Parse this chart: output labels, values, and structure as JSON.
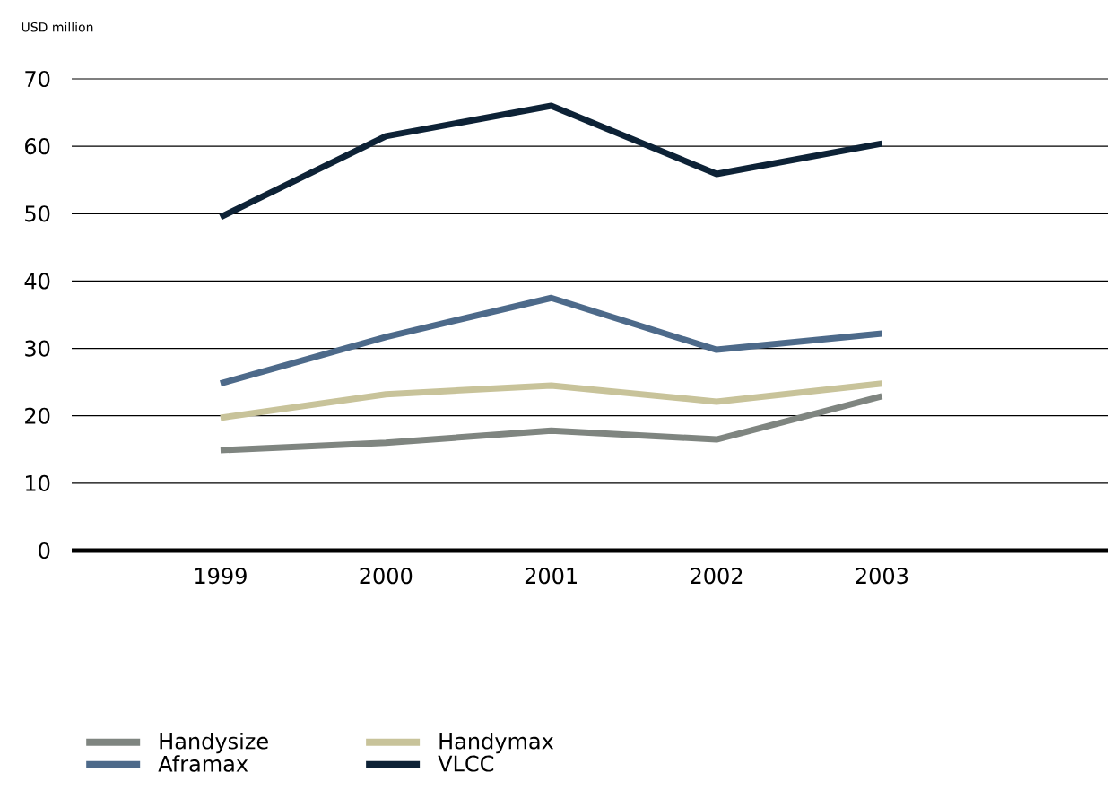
{
  "chart_data": {
    "type": "line",
    "ylabel": "USD million",
    "categories": [
      "1999",
      "2000",
      "2001",
      "2002",
      "2003"
    ],
    "series": [
      {
        "name": "Handysize",
        "color": "#7f8580",
        "values": [
          14.9,
          16,
          17.8,
          16.5,
          22.9
        ]
      },
      {
        "name": "Handymax",
        "color": "#c8c39a",
        "values": [
          19.7,
          23.2,
          24.5,
          22.1,
          24.8
        ]
      },
      {
        "name": "Aframax",
        "color": "#4d6a8a",
        "values": [
          24.8,
          31.7,
          37.5,
          29.8,
          32.2
        ]
      },
      {
        "name": "VLCC",
        "color": "#0d2236",
        "values": [
          49.5,
          61.5,
          66,
          55.9,
          60.4
        ]
      }
    ],
    "ylim": [
      0,
      70
    ],
    "yticks": [
      0,
      10,
      20,
      30,
      40,
      50,
      60,
      70
    ],
    "grid": "y",
    "legend": "bottom",
    "marker": "none",
    "line_style": "solid"
  }
}
